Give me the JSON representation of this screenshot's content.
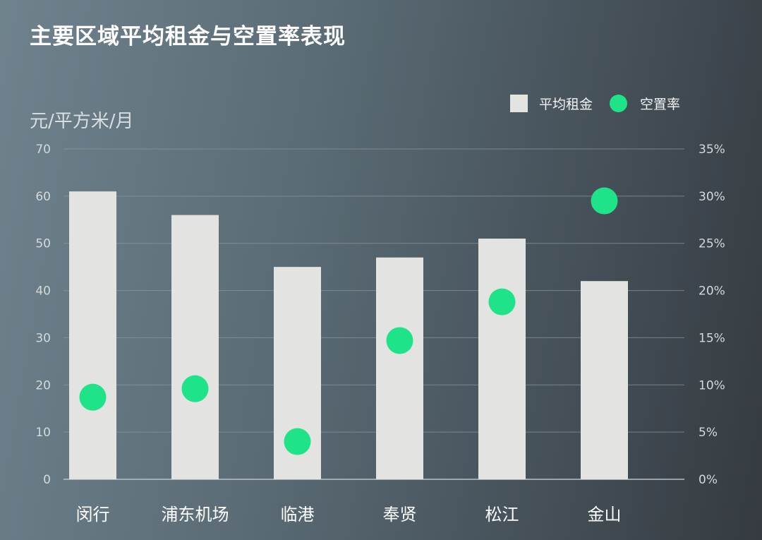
{
  "chart_data": {
    "type": "bar",
    "title": "主要区域平均租金与空置率表现",
    "ylabel": "元/平方米/月",
    "categories": [
      "闵行",
      "浦东机场",
      "临港",
      "奉贤",
      "松江",
      "金山"
    ],
    "series": [
      {
        "name": "平均租金",
        "type": "bar",
        "axis": "left",
        "values": [
          61,
          56,
          45,
          47,
          51,
          42
        ]
      },
      {
        "name": "空置率",
        "type": "scatter",
        "axis": "right",
        "values": [
          8.7,
          9.6,
          4.0,
          14.7,
          18.8,
          29.5
        ]
      }
    ],
    "ylim": [
      0,
      70
    ],
    "y_ticks": [
      "0",
      "10",
      "20",
      "30",
      "40",
      "50",
      "60",
      "70"
    ],
    "y2lim": [
      0,
      35
    ],
    "y2_ticks": [
      "0%",
      "5%",
      "10%",
      "15%",
      "20%",
      "25%",
      "30%",
      "35%"
    ],
    "grid": true,
    "legend_position": "top-right",
    "colors": {
      "bar": "#e3e3e1",
      "dot": "#1ee389",
      "grid": "#8c9aa2",
      "axis": "#b9c2c7"
    }
  }
}
